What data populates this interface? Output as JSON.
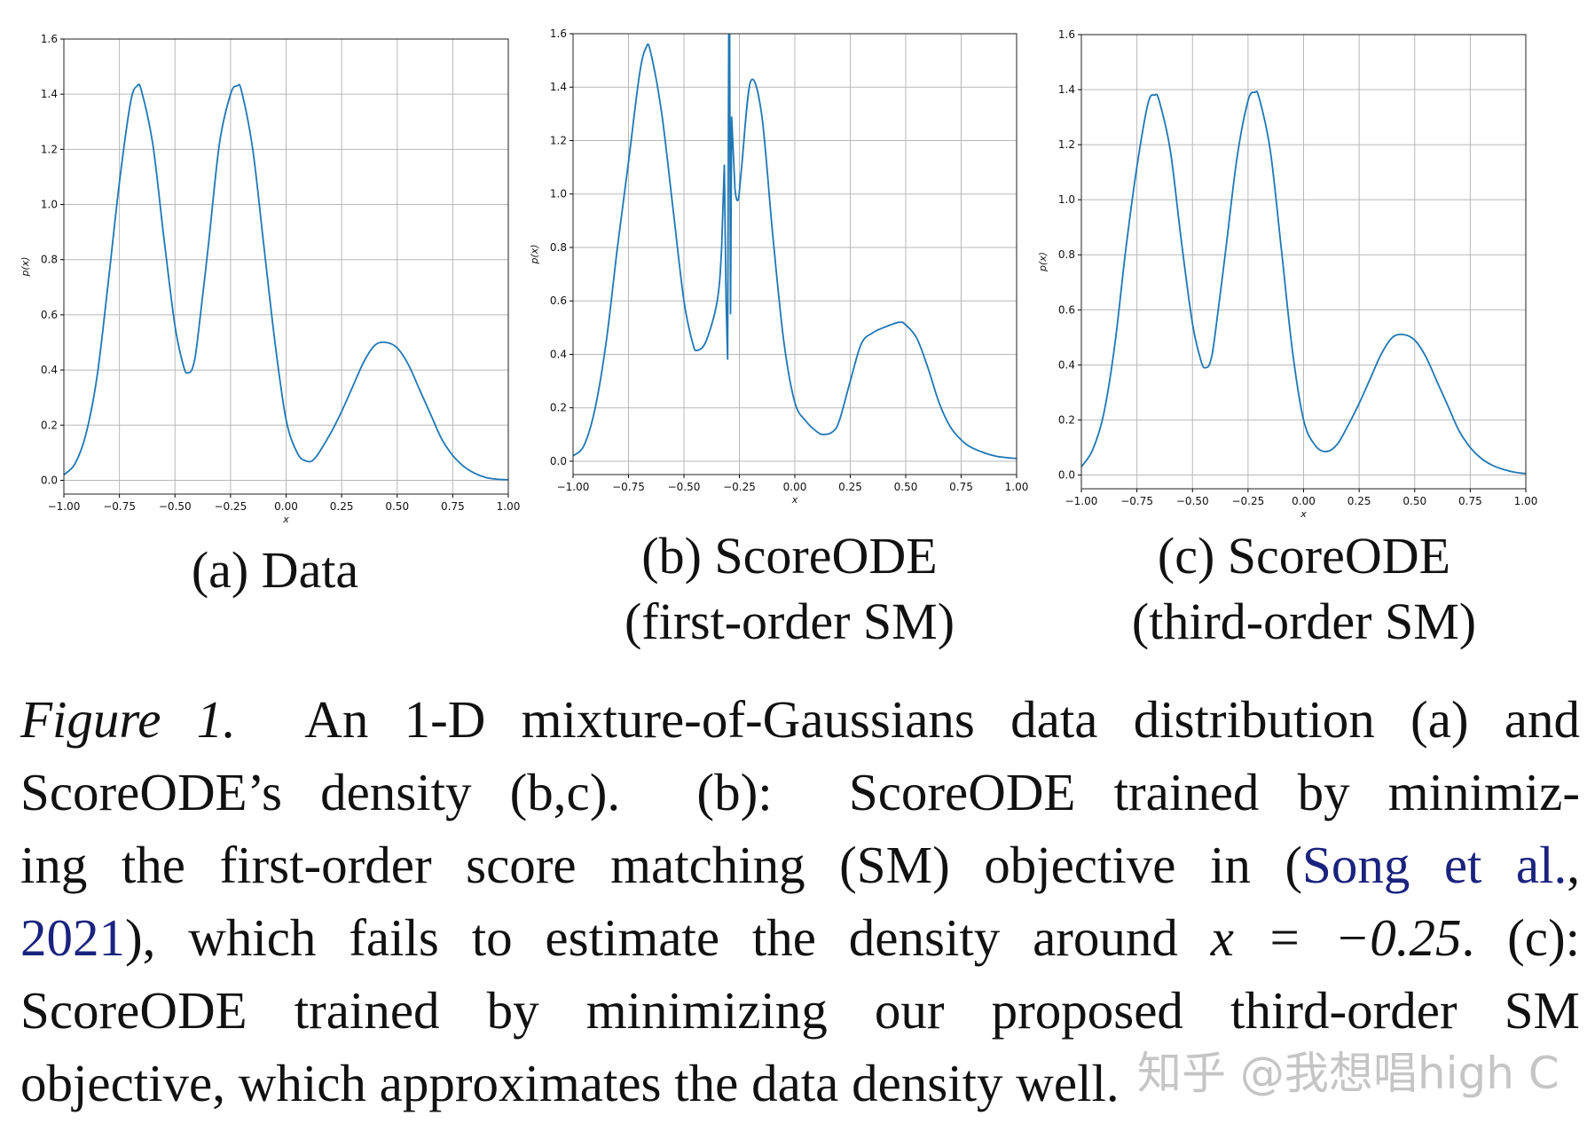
{
  "colors": {
    "line": "#1f77b4",
    "grid": "#b8b8b8",
    "link": "#1a237e"
  },
  "chart_data": [
    {
      "type": "line",
      "id": "a",
      "xlabel": "x",
      "ylabel": "p(x)",
      "xlim": [
        -1,
        1
      ],
      "ylim": [
        -0.05,
        1.6
      ],
      "grid": true,
      "xticks": [
        "−1.00",
        "−0.75",
        "−0.50",
        "−0.25",
        "0.00",
        "0.25",
        "0.50",
        "0.75",
        "1.00"
      ],
      "yticks": [
        "0.0",
        "0.2",
        "0.4",
        "0.6",
        "0.8",
        "1.0",
        "1.2",
        "1.4",
        "1.6"
      ],
      "x": [
        -1,
        -0.95,
        -0.9,
        -0.85,
        -0.8,
        -0.75,
        -0.7,
        -0.67,
        -0.65,
        -0.6,
        -0.55,
        -0.5,
        -0.46,
        -0.44,
        -0.42,
        -0.4,
        -0.35,
        -0.3,
        -0.25,
        -0.22,
        -0.2,
        -0.15,
        -0.1,
        -0.05,
        0,
        0.05,
        0.09,
        0.13,
        0.2,
        0.25,
        0.3,
        0.35,
        0.4,
        0.45,
        0.5,
        0.55,
        0.6,
        0.65,
        0.7,
        0.75,
        0.8,
        0.85,
        0.9,
        0.95,
        1
      ],
      "y": [
        0.02,
        0.06,
        0.17,
        0.38,
        0.72,
        1.08,
        1.37,
        1.43,
        1.41,
        1.22,
        0.88,
        0.56,
        0.41,
        0.39,
        0.41,
        0.5,
        0.85,
        1.22,
        1.4,
        1.43,
        1.41,
        1.2,
        0.85,
        0.5,
        0.22,
        0.1,
        0.07,
        0.08,
        0.17,
        0.25,
        0.34,
        0.43,
        0.49,
        0.5,
        0.48,
        0.42,
        0.33,
        0.24,
        0.15,
        0.09,
        0.05,
        0.025,
        0.01,
        0.004,
        0.002
      ]
    },
    {
      "type": "line",
      "id": "b",
      "xlabel": "x",
      "ylabel": "p(x)",
      "xlim": [
        -1,
        1
      ],
      "ylim": [
        -0.05,
        1.6
      ],
      "grid": true,
      "xticks": [
        "−1.00",
        "−0.75",
        "−0.50",
        "−0.25",
        "0.00",
        "0.25",
        "0.50",
        "0.75",
        "1.00"
      ],
      "yticks": [
        "0.0",
        "0.2",
        "0.4",
        "0.6",
        "0.8",
        "1.0",
        "1.2",
        "1.4",
        "1.6"
      ],
      "x": [
        -1,
        -0.95,
        -0.9,
        -0.85,
        -0.8,
        -0.75,
        -0.7,
        -0.67,
        -0.65,
        -0.6,
        -0.55,
        -0.5,
        -0.46,
        -0.44,
        -0.4,
        -0.35,
        -0.33,
        -0.318,
        -0.31,
        -0.303,
        -0.298,
        -0.294,
        -0.29,
        -0.285,
        -0.28,
        -0.27,
        -0.255,
        -0.24,
        -0.2,
        -0.15,
        -0.1,
        -0.05,
        0,
        0.05,
        0.1,
        0.13,
        0.17,
        0.2,
        0.25,
        0.3,
        0.35,
        0.4,
        0.47,
        0.5,
        0.55,
        0.6,
        0.65,
        0.7,
        0.75,
        0.8,
        0.9,
        1
      ],
      "y": [
        0.02,
        0.06,
        0.2,
        0.45,
        0.8,
        1.12,
        1.45,
        1.55,
        1.53,
        1.3,
        0.95,
        0.6,
        0.44,
        0.415,
        0.45,
        0.6,
        0.8,
        1.11,
        0.6,
        0.38,
        1.6,
        1.6,
        0.55,
        1.29,
        1.2,
        1.02,
        0.98,
        1.1,
        1.42,
        1.3,
        0.85,
        0.45,
        0.22,
        0.15,
        0.11,
        0.1,
        0.11,
        0.15,
        0.3,
        0.44,
        0.48,
        0.5,
        0.52,
        0.51,
        0.46,
        0.35,
        0.22,
        0.13,
        0.08,
        0.05,
        0.02,
        0.01
      ]
    },
    {
      "type": "line",
      "id": "c",
      "xlabel": "x",
      "ylabel": "p(x)",
      "xlim": [
        -1,
        1
      ],
      "ylim": [
        -0.05,
        1.6
      ],
      "grid": true,
      "xticks": [
        "−1.00",
        "−0.75",
        "−0.50",
        "−0.25",
        "0.00",
        "0.25",
        "0.50",
        "0.75",
        "1.00"
      ],
      "yticks": [
        "0.0",
        "0.2",
        "0.4",
        "0.6",
        "0.8",
        "1.0",
        "1.2",
        "1.4",
        "1.6"
      ],
      "x": [
        -1,
        -0.95,
        -0.9,
        -0.85,
        -0.8,
        -0.75,
        -0.7,
        -0.67,
        -0.65,
        -0.6,
        -0.55,
        -0.5,
        -0.46,
        -0.44,
        -0.42,
        -0.4,
        -0.35,
        -0.3,
        -0.25,
        -0.22,
        -0.2,
        -0.15,
        -0.1,
        -0.05,
        0,
        0.05,
        0.1,
        0.15,
        0.2,
        0.25,
        0.3,
        0.35,
        0.4,
        0.45,
        0.5,
        0.55,
        0.6,
        0.65,
        0.7,
        0.75,
        0.8,
        0.85,
        0.9,
        0.95,
        1
      ],
      "y": [
        0.03,
        0.09,
        0.22,
        0.47,
        0.82,
        1.12,
        1.35,
        1.38,
        1.36,
        1.18,
        0.85,
        0.55,
        0.41,
        0.39,
        0.41,
        0.5,
        0.82,
        1.15,
        1.36,
        1.39,
        1.37,
        1.18,
        0.82,
        0.45,
        0.2,
        0.11,
        0.085,
        0.11,
        0.18,
        0.26,
        0.35,
        0.44,
        0.5,
        0.51,
        0.49,
        0.43,
        0.34,
        0.25,
        0.16,
        0.1,
        0.06,
        0.035,
        0.02,
        0.01,
        0.005
      ]
    }
  ],
  "subcaptions": {
    "a": {
      "line1": "(a) Data"
    },
    "b": {
      "line1": "(b) ScoreODE",
      "line2": "(first-order SM)"
    },
    "c": {
      "line1": "(c) ScoreODE",
      "line2": "(third-order SM)"
    }
  },
  "caption": {
    "label": "Figure 1.",
    "l1": "  An 1-D mixture-of-Gaussians data distribution (a) and",
    "l2": "ScoreODE’s density (b,c).  (b):  ScoreODE trained by minimiz-",
    "l3a": "ing the first-order score matching (SM) objective in (",
    "cite_authors": "Song et al.",
    "l3b": ",",
    "cite_year": "2021",
    "l4a": "), which fails to estimate the density around ",
    "math": "x = −0.25",
    "l4b": ". (c):",
    "l5": "ScoreODE trained by minimizing our proposed third-order SM",
    "l6": "objective, which approximates the data density well."
  },
  "watermark": "知乎 @我想唱high C"
}
